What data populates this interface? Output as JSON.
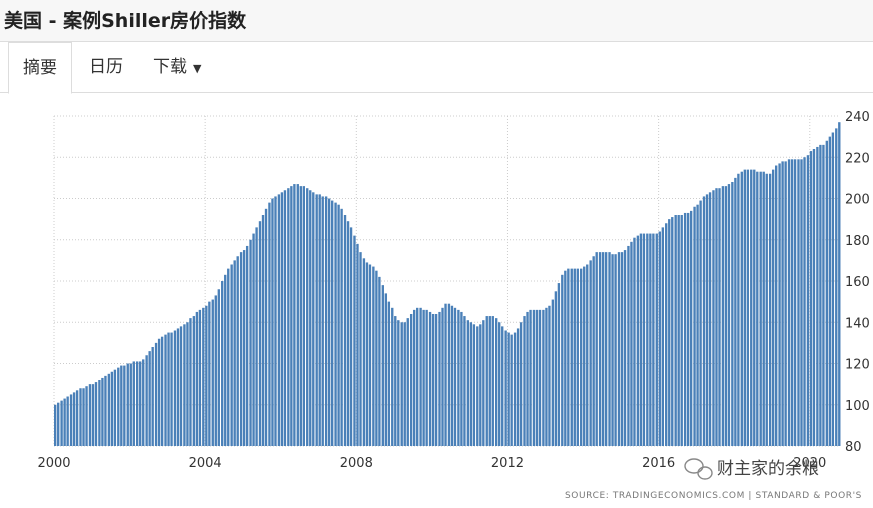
{
  "header": {
    "title": "美国 - 案例Shiller房价指数"
  },
  "tabs": [
    "摘要",
    "日历",
    "下载"
  ],
  "chart_data": {
    "type": "bar",
    "color": "#4a80b8",
    "grid": true,
    "source": "SOURCE: TRADINGECONOMICS.COM | STANDARD & POOR'S",
    "watermark": "财主家的余粮",
    "xlim": [
      2000,
      2020.8
    ],
    "xticks": [
      2000,
      2004,
      2008,
      2012,
      2016,
      2020
    ],
    "ylim": [
      80,
      240
    ],
    "yticks": [
      80,
      100,
      120,
      140,
      160,
      180,
      200,
      220,
      240
    ],
    "x": [
      2000,
      2000.08,
      2000.17,
      2000.25,
      2000.33,
      2000.42,
      2000.5,
      2000.58,
      2000.67,
      2000.75,
      2000.83,
      2000.92,
      2001,
      2001.08,
      2001.17,
      2001.25,
      2001.33,
      2001.42,
      2001.5,
      2001.58,
      2001.67,
      2001.75,
      2001.83,
      2001.92,
      2002,
      2002.08,
      2002.17,
      2002.25,
      2002.33,
      2002.42,
      2002.5,
      2002.58,
      2002.67,
      2002.75,
      2002.83,
      2002.92,
      2003,
      2003.08,
      2003.17,
      2003.25,
      2003.33,
      2003.42,
      2003.5,
      2003.58,
      2003.67,
      2003.75,
      2003.83,
      2003.92,
      2004,
      2004.08,
      2004.17,
      2004.25,
      2004.33,
      2004.42,
      2004.5,
      2004.58,
      2004.67,
      2004.75,
      2004.83,
      2004.92,
      2005,
      2005.08,
      2005.17,
      2005.25,
      2005.33,
      2005.42,
      2005.5,
      2005.58,
      2005.67,
      2005.75,
      2005.83,
      2005.92,
      2006,
      2006.08,
      2006.17,
      2006.25,
      2006.33,
      2006.42,
      2006.5,
      2006.58,
      2006.67,
      2006.75,
      2006.83,
      2006.92,
      2007,
      2007.08,
      2007.17,
      2007.25,
      2007.33,
      2007.42,
      2007.5,
      2007.58,
      2007.67,
      2007.75,
      2007.83,
      2007.92,
      2008,
      2008.08,
      2008.17,
      2008.25,
      2008.33,
      2008.42,
      2008.5,
      2008.58,
      2008.67,
      2008.75,
      2008.83,
      2008.92,
      2009,
      2009.08,
      2009.17,
      2009.25,
      2009.33,
      2009.42,
      2009.5,
      2009.58,
      2009.67,
      2009.75,
      2009.83,
      2009.92,
      2010,
      2010.08,
      2010.17,
      2010.25,
      2010.33,
      2010.42,
      2010.5,
      2010.58,
      2010.67,
      2010.75,
      2010.83,
      2010.92,
      2011,
      2011.08,
      2011.17,
      2011.25,
      2011.33,
      2011.42,
      2011.5,
      2011.58,
      2011.67,
      2011.75,
      2011.83,
      2011.92,
      2012,
      2012.08,
      2012.17,
      2012.25,
      2012.33,
      2012.42,
      2012.5,
      2012.58,
      2012.67,
      2012.75,
      2012.83,
      2012.92,
      2013,
      2013.08,
      2013.17,
      2013.25,
      2013.33,
      2013.42,
      2013.5,
      2013.58,
      2013.67,
      2013.75,
      2013.83,
      2013.92,
      2014,
      2014.08,
      2014.17,
      2014.25,
      2014.33,
      2014.42,
      2014.5,
      2014.58,
      2014.67,
      2014.75,
      2014.83,
      2014.92,
      2015,
      2015.08,
      2015.17,
      2015.25,
      2015.33,
      2015.42,
      2015.5,
      2015.58,
      2015.67,
      2015.75,
      2015.83,
      2015.92,
      2016,
      2016.08,
      2016.17,
      2016.25,
      2016.33,
      2016.42,
      2016.5,
      2016.58,
      2016.67,
      2016.75,
      2016.83,
      2016.92,
      2017,
      2017.08,
      2017.17,
      2017.25,
      2017.33,
      2017.42,
      2017.5,
      2017.58,
      2017.67,
      2017.75,
      2017.83,
      2017.92,
      2018,
      2018.08,
      2018.17,
      2018.25,
      2018.33,
      2018.42,
      2018.5,
      2018.58,
      2018.67,
      2018.75,
      2018.83,
      2018.92,
      2019,
      2019.08,
      2019.17,
      2019.25,
      2019.33,
      2019.42,
      2019.5,
      2019.58,
      2019.67,
      2019.75,
      2019.83,
      2019.92,
      2020,
      2020.08,
      2020.17,
      2020.25,
      2020.33,
      2020.42,
      2020.5,
      2020.58,
      2020.67,
      2020.75
    ],
    "values": [
      100,
      101,
      102,
      103,
      104,
      105,
      106,
      107,
      108,
      108,
      109,
      110,
      110,
      111,
      112,
      113,
      114,
      115,
      116,
      117,
      118,
      119,
      119,
      120,
      120,
      121,
      121,
      121,
      122,
      124,
      126,
      128,
      130,
      132,
      133,
      134,
      135,
      135,
      136,
      137,
      138,
      139,
      140,
      142,
      143,
      145,
      146,
      147,
      148,
      150,
      151,
      153,
      156,
      160,
      163,
      166,
      168,
      170,
      172,
      174,
      175,
      177,
      180,
      183,
      186,
      189,
      192,
      195,
      198,
      200,
      201,
      202,
      203,
      204,
      205,
      206,
      207,
      207,
      206,
      206,
      205,
      204,
      203,
      202,
      202,
      201,
      201,
      200,
      199,
      198,
      197,
      195,
      192,
      189,
      186,
      182,
      178,
      174,
      171,
      169,
      168,
      167,
      165,
      162,
      158,
      154,
      150,
      147,
      143,
      141,
      140,
      140,
      142,
      144,
      146,
      147,
      147,
      146,
      146,
      145,
      144,
      144,
      145,
      147,
      149,
      149,
      148,
      147,
      146,
      145,
      143,
      141,
      140,
      139,
      138,
      139,
      141,
      143,
      143,
      143,
      142,
      140,
      138,
      136,
      135,
      134,
      135,
      137,
      140,
      143,
      145,
      146,
      146,
      146,
      146,
      146,
      147,
      148,
      151,
      155,
      159,
      163,
      165,
      166,
      166,
      166,
      166,
      166,
      167,
      168,
      170,
      172,
      174,
      174,
      174,
      174,
      174,
      173,
      173,
      174,
      174,
      175,
      177,
      179,
      181,
      182,
      183,
      183,
      183,
      183,
      183,
      183,
      184,
      186,
      188,
      190,
      191,
      192,
      192,
      192,
      193,
      193,
      194,
      196,
      197,
      199,
      201,
      202,
      203,
      204,
      205,
      205,
      206,
      206,
      207,
      208,
      210,
      212,
      213,
      214,
      214,
      214,
      214,
      213,
      213,
      213,
      212,
      212,
      214,
      216,
      217,
      218,
      218,
      219,
      219,
      219,
      219,
      219,
      220,
      221,
      223,
      224,
      225,
      226,
      226,
      228,
      230,
      232,
      234,
      237
    ]
  }
}
